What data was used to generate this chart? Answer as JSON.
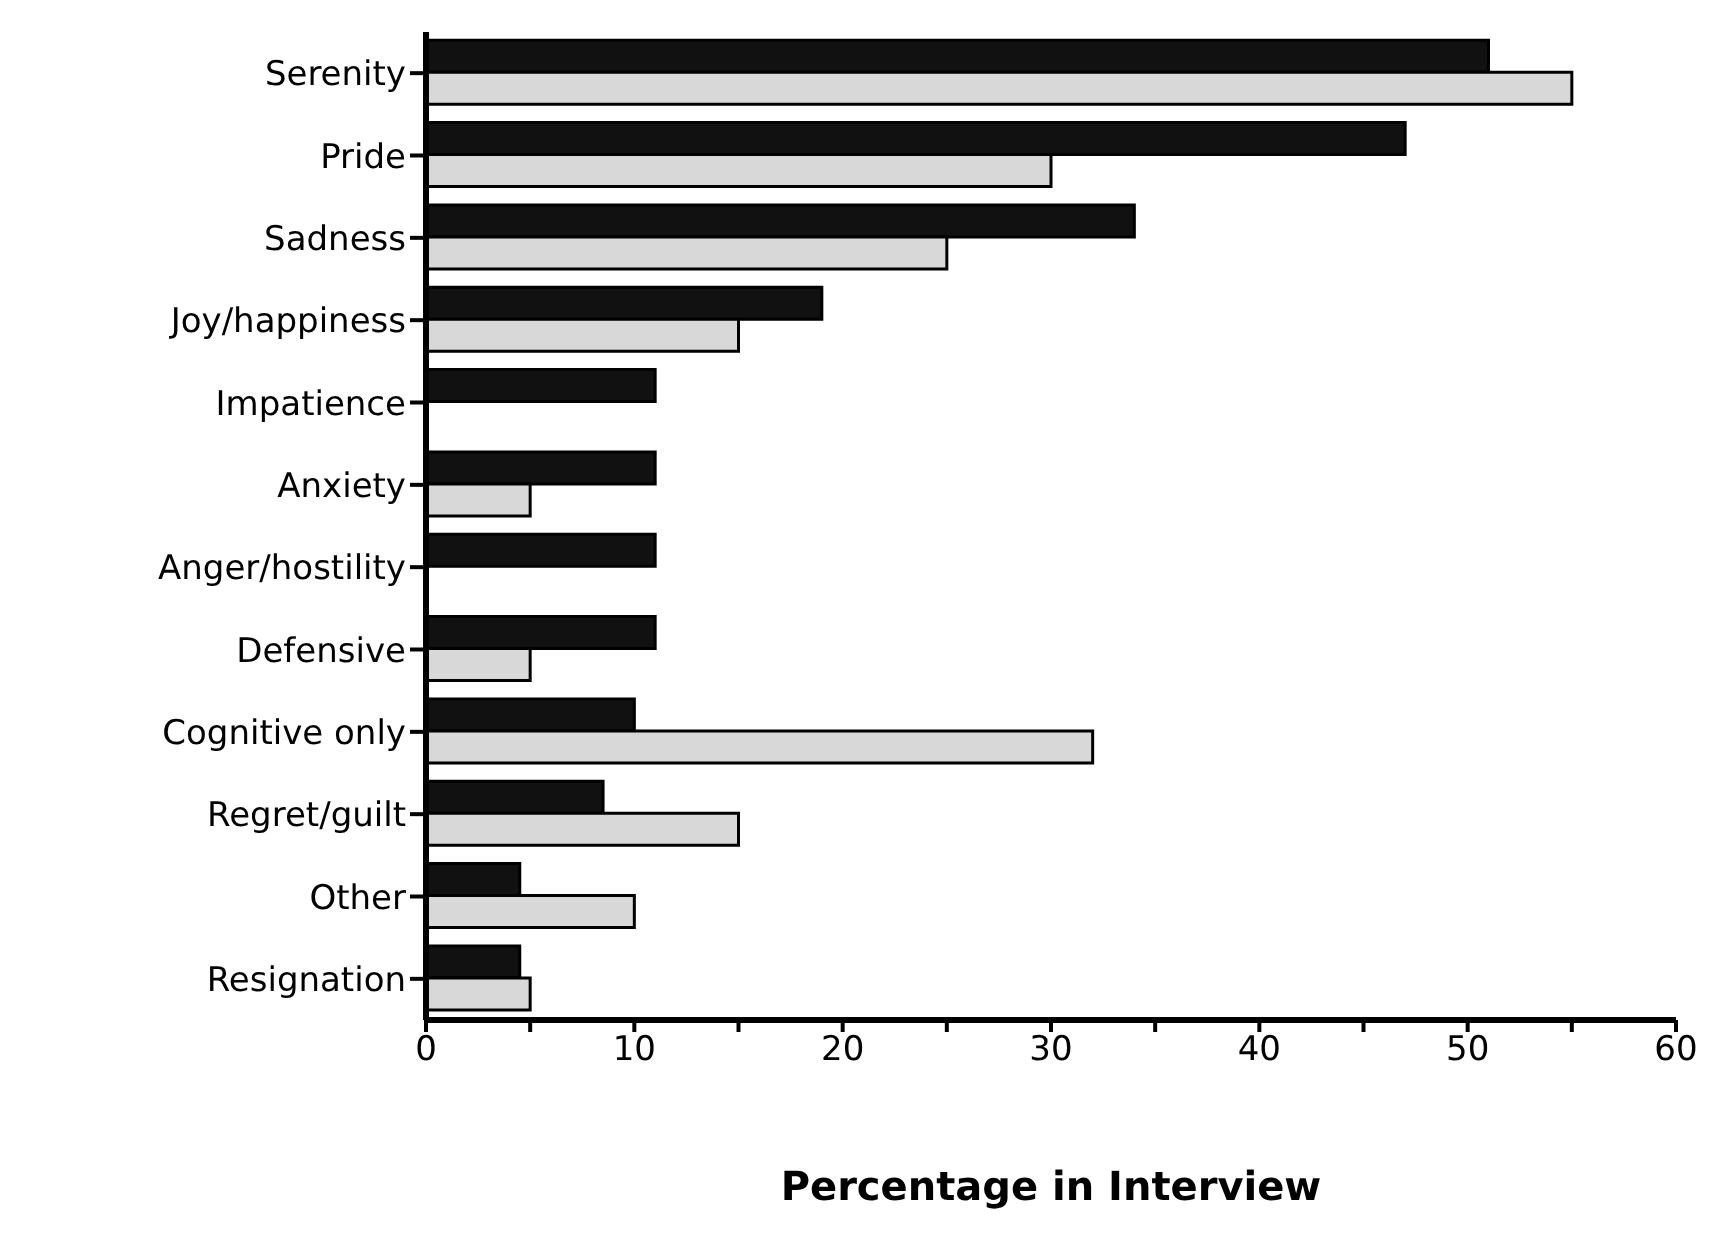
{
  "chart_data": {
    "type": "bar",
    "orientation": "horizontal",
    "xlabel": "Percentage in Interview",
    "categories": [
      "Serenity",
      "Pride",
      "Sadness",
      "Joy/happiness",
      "Impatience",
      "Anxiety",
      "Anger/hostility",
      "Defensive",
      "Cognitive only",
      "Regret/guilt",
      "Other",
      "Resignation"
    ],
    "series": [
      {
        "color": "#111111",
        "values": [
          51,
          47,
          34,
          19,
          11,
          11,
          11,
          11,
          10,
          8.5,
          4.5,
          4.5
        ]
      },
      {
        "color": "#d8d8d8",
        "values": [
          55,
          30,
          25,
          15,
          null,
          5,
          null,
          5,
          32,
          15,
          10,
          5
        ]
      }
    ],
    "xlim": [
      0,
      60
    ],
    "xticks": [
      0,
      {
        "value": 5,
        "label": null
      },
      10,
      {
        "value": 15,
        "label": null
      },
      20,
      {
        "value": 25,
        "label": null
      },
      30,
      {
        "value": 35,
        "label": null
      },
      40,
      {
        "value": 45,
        "label": null
      },
      50,
      {
        "value": 55,
        "label": null
      },
      60
    ],
    "grid": false,
    "legend": false
  }
}
